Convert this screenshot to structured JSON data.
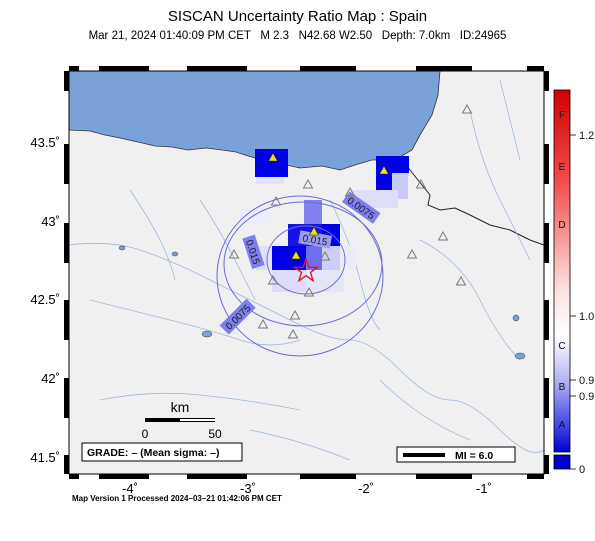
{
  "header": {
    "title": "SISCAN Uncertainty Ratio Map : Spain",
    "subtitle": "Mar 21, 2024 01:40:09 PM CET   M 2.3   N42.68 W2.50   Depth: 7.0km   ID:24965"
  },
  "map": {
    "lat_labels": [
      "43.5˚",
      "43˚",
      "42.5˚",
      "42˚",
      "41.5˚"
    ],
    "lon_labels": [
      "-4˚",
      "-3˚",
      "-2˚",
      "-1˚"
    ],
    "contour_labels": [
      "0.0075",
      "0.015",
      "0.015",
      "0.0075"
    ],
    "scale_bar": {
      "unit": "km",
      "min": "0",
      "max": "50"
    },
    "grade_box": "GRADE: – (Mean sigma: –)",
    "mi_box": "MI = 6.0",
    "epicenter": {
      "lat": 42.68,
      "lon": -2.5
    },
    "colors": {
      "sea": "#7ba1d9",
      "land": "#f0f0f0",
      "river": "#9bb8de",
      "contour": "#6b6bd6",
      "epicenter": "#e8112d"
    }
  },
  "colorbar": {
    "grades": [
      "F",
      "E",
      "D",
      "C",
      "B",
      "A"
    ],
    "values": [
      "1.2",
      "1.0",
      "0.9",
      "0.9",
      "0"
    ]
  },
  "footer": {
    "text": "Map Version 1 Processed 2024–03–21 01:42:06 PM CET"
  }
}
